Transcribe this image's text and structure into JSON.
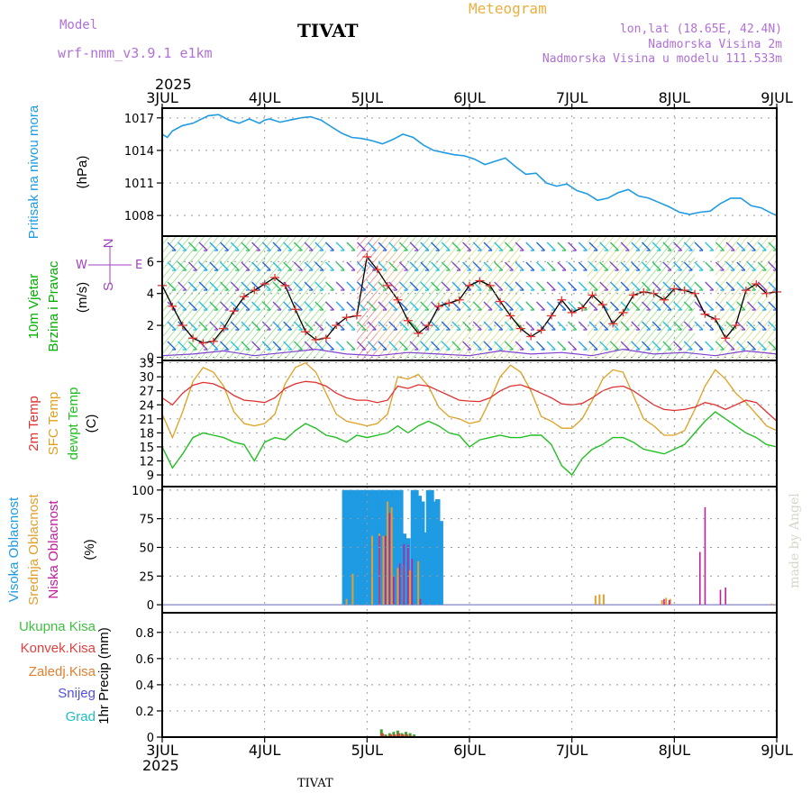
{
  "header": {
    "model_label": "Model",
    "model_name": "wrf-nmm_v3.9.1  e1km",
    "station": "TIVAT",
    "meteogram": "Meteogram",
    "lonlat": "lon,lat (18.65E, 42.4N)",
    "elevation": "Nadmorska Visina 2m",
    "model_elevation": "Nadmorska Visina u modelu 111.533m",
    "year_top": "2025",
    "year_bottom": "2025",
    "footer_station": "TIVAT",
    "credit": "made by Angel"
  },
  "colors": {
    "pressure": "#1f9be3",
    "wind_label": "#00b000",
    "t2m": "#e03030",
    "sfc": "#e0a020",
    "dew": "#20c020",
    "high_cloud": "#1f9be3",
    "mid_cloud": "#e0a030",
    "low_cloud": "#c0209a",
    "purple": "#a040c0"
  },
  "chart_data": [
    {
      "type": "line",
      "panel": "pressure",
      "title": "",
      "xlabel": "",
      "x_categories": [
        "3JUL",
        "4JUL",
        "5JUL",
        "6JUL",
        "7JUL",
        "8JUL",
        "9JUL"
      ],
      "ylabel_lines": [
        "Pritisak na nivou mora",
        "(hPa)"
      ],
      "ylim": [
        1006.1,
        1017.9
      ],
      "yticks": [
        1008,
        1011,
        1014,
        1017
      ],
      "series": [
        {
          "name": "",
          "x": [
            0,
            0.05,
            0.1,
            0.2,
            0.3,
            0.45,
            0.55,
            0.65,
            0.75,
            0.85,
            0.95,
            1.0,
            1.05,
            1.15,
            1.25,
            1.35,
            1.45,
            1.55,
            1.65,
            1.75,
            1.85,
            1.95,
            2.05,
            2.15,
            2.25,
            2.35,
            2.45,
            2.55,
            2.65,
            2.75,
            2.85,
            2.95,
            3.05,
            3.15,
            3.25,
            3.35,
            3.45,
            3.55,
            3.65,
            3.75,
            3.85,
            3.95,
            4.05,
            4.15,
            4.25,
            4.35,
            4.45,
            4.55,
            4.65,
            4.75,
            4.85,
            4.95,
            5.05,
            5.15,
            5.25,
            5.35,
            5.45,
            5.55,
            5.65,
            5.75,
            5.85,
            5.95,
            6.0
          ],
          "values": [
            1015.5,
            1015.2,
            1015.8,
            1016.3,
            1016.5,
            1017.2,
            1017.3,
            1016.8,
            1016.5,
            1016.9,
            1016.5,
            1016.8,
            1016.9,
            1016.6,
            1016.8,
            1017.0,
            1017.1,
            1016.8,
            1016.2,
            1015.6,
            1015.2,
            1015.1,
            1014.9,
            1014.6,
            1015.0,
            1015.5,
            1015.2,
            1014.5,
            1014.0,
            1013.8,
            1013.6,
            1013.5,
            1013.2,
            1012.7,
            1013.0,
            1013.3,
            1012.5,
            1011.8,
            1011.9,
            1011.0,
            1010.7,
            1010.9,
            1010.3,
            1010.0,
            1009.4,
            1009.6,
            1010.1,
            1010.4,
            1009.8,
            1009.6,
            1009.2,
            1008.8,
            1008.3,
            1008.1,
            1008.3,
            1008.4,
            1009.1,
            1009.6,
            1009.6,
            1008.9,
            1008.7,
            1008.2,
            1008.0
          ]
        }
      ]
    },
    {
      "type": "line",
      "panel": "wind",
      "title": "",
      "xlabel": "",
      "x_categories": [
        "3JUL",
        "4JUL",
        "5JUL",
        "6JUL",
        "7JUL",
        "8JUL",
        "9JUL"
      ],
      "ylabel_lines": [
        "10m Vjetar",
        "Brzina i Pravac",
        "(m/s)"
      ],
      "side_legend": [
        "W",
        "E",
        "N",
        "S"
      ],
      "ylim": [
        -0.2,
        7.6
      ],
      "yticks": [
        0,
        2,
        4,
        6
      ],
      "series": [
        {
          "name": "",
          "x": [
            0,
            0.1,
            0.2,
            0.3,
            0.4,
            0.5,
            0.6,
            0.7,
            0.8,
            0.9,
            1.0,
            1.1,
            1.2,
            1.3,
            1.4,
            1.5,
            1.6,
            1.7,
            1.8,
            1.9,
            2.0,
            2.1,
            2.2,
            2.3,
            2.4,
            2.5,
            2.6,
            2.7,
            2.8,
            2.9,
            3.0,
            3.1,
            3.2,
            3.3,
            3.4,
            3.5,
            3.6,
            3.7,
            3.8,
            3.9,
            4.0,
            4.1,
            4.2,
            4.3,
            4.4,
            4.5,
            4.6,
            4.7,
            4.8,
            4.9,
            5.0,
            5.1,
            5.2,
            5.3,
            5.4,
            5.5,
            5.6,
            5.7,
            5.8,
            5.9,
            6.0
          ],
          "values": [
            4.5,
            3.2,
            2.0,
            1.2,
            0.9,
            1.0,
            1.8,
            2.9,
            3.8,
            4.2,
            4.6,
            5.0,
            4.5,
            3.0,
            1.6,
            1.1,
            1.2,
            2.0,
            2.5,
            2.6,
            6.3,
            5.5,
            4.5,
            3.6,
            2.3,
            1.5,
            2.0,
            3.2,
            3.4,
            3.6,
            4.5,
            4.8,
            4.5,
            3.5,
            2.6,
            1.8,
            1.3,
            1.7,
            2.6,
            3.6,
            2.8,
            3.1,
            3.9,
            3.3,
            2.1,
            2.8,
            3.9,
            4.1,
            4.0,
            3.6,
            4.3,
            4.2,
            4.0,
            2.7,
            2.4,
            1.2,
            2.0,
            4.2,
            4.6,
            4.0,
            4.1
          ]
        },
        {
          "name": "",
          "x": [
            0,
            0.3,
            0.6,
            0.9,
            1.2,
            1.5,
            1.8,
            2.1,
            2.4,
            2.7,
            3.0,
            3.3,
            3.6,
            3.9,
            4.2,
            4.5,
            4.8,
            5.1,
            5.4,
            5.7,
            6.0
          ],
          "values": [
            0.1,
            0.2,
            0.4,
            0.1,
            0.3,
            0.5,
            0.2,
            0.1,
            0.3,
            0.2,
            0.1,
            0.4,
            0.2,
            0.3,
            0.1,
            0.5,
            0.2,
            0.3,
            0.1,
            0.4,
            0.2
          ]
        }
      ]
    },
    {
      "type": "line",
      "panel": "temperature",
      "title": "",
      "xlabel": "",
      "x_categories": [
        "3JUL",
        "4JUL",
        "5JUL",
        "6JUL",
        "7JUL",
        "8JUL",
        "9JUL"
      ],
      "ylabel_lines": [
        "2m Temp",
        "SFC Temp",
        "dewpt Temp",
        "(C)"
      ],
      "ylim": [
        6.5,
        33.5
      ],
      "yticks": [
        9,
        12,
        15,
        18,
        21,
        24,
        27,
        30,
        33
      ],
      "series": [
        {
          "name": "2m Temp",
          "x": [
            0,
            0.1,
            0.2,
            0.3,
            0.4,
            0.5,
            0.6,
            0.7,
            0.8,
            0.9,
            1.0,
            1.1,
            1.2,
            1.3,
            1.4,
            1.5,
            1.6,
            1.7,
            1.8,
            1.9,
            2.0,
            2.1,
            2.2,
            2.3,
            2.4,
            2.5,
            2.6,
            2.7,
            2.8,
            2.9,
            3.0,
            3.1,
            3.2,
            3.3,
            3.4,
            3.5,
            3.6,
            3.7,
            3.8,
            3.9,
            4.0,
            4.1,
            4.2,
            4.3,
            4.4,
            4.5,
            4.6,
            4.7,
            4.8,
            4.9,
            5.0,
            5.1,
            5.2,
            5.3,
            5.4,
            5.5,
            5.6,
            5.7,
            5.8,
            5.9,
            6.0
          ],
          "values": [
            25.5,
            24.0,
            26.5,
            28.2,
            28.8,
            28.5,
            27.5,
            26.0,
            25.0,
            24.8,
            24.5,
            25.5,
            27.5,
            28.5,
            29.0,
            28.8,
            28.0,
            26.5,
            25.5,
            25.0,
            25.0,
            24.5,
            25.0,
            28.0,
            27.5,
            28.3,
            28.0,
            27.0,
            26.0,
            25.0,
            24.8,
            24.7,
            25.5,
            27.0,
            28.0,
            28.3,
            27.5,
            26.5,
            25.5,
            24.2,
            24.0,
            24.3,
            25.5,
            27.0,
            27.8,
            28.0,
            27.0,
            25.5,
            24.0,
            23.0,
            22.8,
            23.0,
            23.5,
            24.5,
            24.0,
            23.0,
            24.0,
            25.0,
            24.5,
            22.5,
            20.5
          ]
        },
        {
          "name": "SFC Temp",
          "x": [
            0,
            0.1,
            0.2,
            0.3,
            0.4,
            0.5,
            0.6,
            0.7,
            0.8,
            0.9,
            1.0,
            1.1,
            1.2,
            1.3,
            1.4,
            1.5,
            1.6,
            1.7,
            1.8,
            1.9,
            2.0,
            2.1,
            2.2,
            2.3,
            2.4,
            2.5,
            2.6,
            2.7,
            2.8,
            2.9,
            3.0,
            3.1,
            3.2,
            3.3,
            3.4,
            3.5,
            3.6,
            3.7,
            3.8,
            3.9,
            4.0,
            4.1,
            4.2,
            4.3,
            4.4,
            4.5,
            4.6,
            4.7,
            4.8,
            4.9,
            5.0,
            5.1,
            5.2,
            5.3,
            5.4,
            5.5,
            5.6,
            5.7,
            5.8,
            5.9,
            6.0
          ],
          "values": [
            22.0,
            17.0,
            22.5,
            29.0,
            32.0,
            31.0,
            28.0,
            22.5,
            20.0,
            19.5,
            20.0,
            22.0,
            28.5,
            32.0,
            33.0,
            31.0,
            26.5,
            22.0,
            20.5,
            20.0,
            19.5,
            20.0,
            22.0,
            30.0,
            29.5,
            30.5,
            28.0,
            23.5,
            21.5,
            21.0,
            20.0,
            20.5,
            25.0,
            30.0,
            32.5,
            31.0,
            27.0,
            21.5,
            20.5,
            19.0,
            19.0,
            21.0,
            25.0,
            29.5,
            31.5,
            31.0,
            26.0,
            21.0,
            19.5,
            17.5,
            17.5,
            18.5,
            23.0,
            28.0,
            31.5,
            29.5,
            26.5,
            24.5,
            22.0,
            19.5,
            18.5
          ]
        },
        {
          "name": "dewpt Temp",
          "x": [
            0,
            0.1,
            0.2,
            0.3,
            0.4,
            0.5,
            0.6,
            0.7,
            0.8,
            0.9,
            1.0,
            1.1,
            1.2,
            1.3,
            1.4,
            1.5,
            1.6,
            1.7,
            1.8,
            1.9,
            2.0,
            2.1,
            2.2,
            2.3,
            2.4,
            2.5,
            2.6,
            2.7,
            2.8,
            2.9,
            3.0,
            3.1,
            3.2,
            3.3,
            3.4,
            3.5,
            3.6,
            3.7,
            3.8,
            3.9,
            4.0,
            4.1,
            4.2,
            4.3,
            4.4,
            4.5,
            4.6,
            4.7,
            4.8,
            4.9,
            5.0,
            5.1,
            5.2,
            5.3,
            5.4,
            5.5,
            5.6,
            5.7,
            5.8,
            5.9,
            6.0
          ],
          "values": [
            15.0,
            10.5,
            13.5,
            17.0,
            18.0,
            17.5,
            17.0,
            16.0,
            15.5,
            12.0,
            16.0,
            17.0,
            16.5,
            18.5,
            20.0,
            19.0,
            17.5,
            17.0,
            16.0,
            17.5,
            17.0,
            17.5,
            18.0,
            19.5,
            18.0,
            19.5,
            20.5,
            19.5,
            18.0,
            17.5,
            15.0,
            16.5,
            17.0,
            17.5,
            17.0,
            17.0,
            17.5,
            17.5,
            15.5,
            11.0,
            9.0,
            12.5,
            14.5,
            15.5,
            17.0,
            17.0,
            16.0,
            14.5,
            14.0,
            13.5,
            14.5,
            15.5,
            18.0,
            20.5,
            22.5,
            21.0,
            19.5,
            18.0,
            17.0,
            15.5,
            15.0
          ]
        }
      ]
    },
    {
      "type": "bar",
      "panel": "cloud",
      "title": "",
      "xlabel": "",
      "x_categories": [
        "3JUL",
        "4JUL",
        "5JUL",
        "6JUL",
        "7JUL",
        "8JUL",
        "9JUL"
      ],
      "ylabel_lines": [
        "Visoka Oblacnost",
        "Srednja Oblacnost",
        "Niska Oblacnost",
        "(%)"
      ],
      "ylim": [
        -7,
        103
      ],
      "yticks": [
        0,
        25,
        50,
        75,
        100
      ],
      "series": [
        {
          "name": "Visoka Oblacnost",
          "x": [
            1.78,
            1.81,
            1.84,
            1.87,
            1.9,
            1.93,
            1.96,
            1.99,
            2.02,
            2.05,
            2.08,
            2.11,
            2.14,
            2.17,
            2.2,
            2.24,
            2.27,
            2.3,
            2.33,
            2.36,
            2.4,
            2.45,
            2.48,
            2.51,
            2.54,
            2.57,
            2.6,
            2.63,
            2.66,
            2.69,
            2.72,
            2.75,
            2.78,
            2.81,
            2.84
          ],
          "values": [
            100,
            100,
            100,
            100,
            100,
            100,
            100,
            100,
            100,
            100,
            100,
            100,
            100,
            100,
            100,
            100,
            100,
            100,
            100,
            62,
            58,
            100,
            100,
            95,
            90,
            63,
            100,
            100,
            90,
            92,
            73,
            0,
            0,
            0,
            0
          ]
        },
        {
          "name": "Srednja Oblacnost",
          "x": [
            1.8,
            1.86,
            1.92,
            2.05,
            2.12,
            2.16,
            2.2,
            2.24,
            2.3,
            2.36,
            2.42,
            2.5,
            4.23,
            4.27,
            4.31,
            4.88,
            4.92,
            4.96,
            5.95
          ],
          "values": [
            5,
            27,
            0,
            60,
            62,
            60,
            90,
            85,
            32,
            35,
            30,
            38,
            8,
            9,
            9,
            4,
            6,
            5,
            1
          ]
        },
        {
          "name": "Niska Oblacnost",
          "x": [
            2.12,
            2.18,
            2.22,
            2.26,
            2.32,
            2.36,
            2.4,
            2.44,
            2.52,
            4.9,
            4.95,
            5.25,
            5.3,
            5.45,
            5.5
          ],
          "values": [
            60,
            60,
            80,
            25,
            36,
            53,
            52,
            40,
            5,
            5,
            4,
            46,
            85,
            13,
            15
          ]
        }
      ]
    },
    {
      "type": "bar",
      "panel": "precip",
      "title": "",
      "xlabel": "",
      "x_categories": [
        "3JUL",
        "4JUL",
        "5JUL",
        "6JUL",
        "7JUL",
        "8JUL",
        "9JUL"
      ],
      "ylabel_lines": [
        "Ukupna Kisa",
        "Konvek.Kisa",
        "Zaledj.Kisa",
        "Snijeg",
        "Grad",
        "1hr Precip (mm)"
      ],
      "ylim": [
        0,
        0.95
      ],
      "yticks": [
        0,
        0.2,
        0.4,
        0.6,
        0.8
      ],
      "series": [
        {
          "name": "Ukupna Kisa",
          "x": [
            2.14,
            2.18,
            2.22,
            2.26,
            2.3,
            2.34,
            2.38,
            2.42,
            2.46
          ],
          "values": [
            0.06,
            0.02,
            0.03,
            0.04,
            0.05,
            0.03,
            0.04,
            0.03,
            0.02
          ]
        },
        {
          "name": "Konvek.Kisa",
          "x": [
            2.15,
            2.19,
            2.23,
            2.27,
            2.31,
            2.35,
            2.39,
            2.43
          ],
          "values": [
            0.03,
            0.01,
            0.02,
            0.02,
            0.03,
            0.02,
            0.02,
            0.01
          ]
        },
        {
          "name": "Zaledj.Kisa",
          "x": [],
          "values": []
        },
        {
          "name": "Snijeg",
          "x": [],
          "values": []
        },
        {
          "name": "Grad",
          "x": [],
          "values": []
        }
      ]
    }
  ]
}
